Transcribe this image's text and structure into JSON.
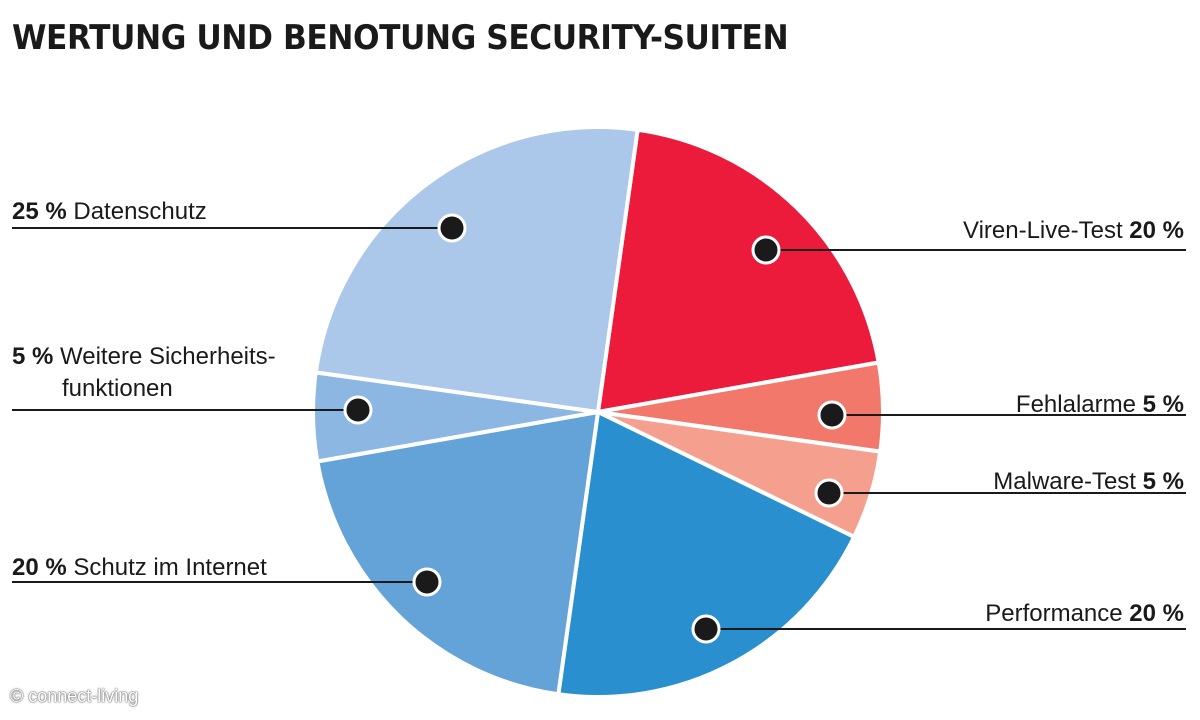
{
  "title": "WERTUNG UND BENOTUNG SECURITY-SUITEN",
  "copyright": "© connect-living",
  "chart_data": {
    "type": "pie",
    "title": "WERTUNG UND BENOTUNG SECURITY-SUITEN",
    "unit": "%",
    "slices": [
      {
        "label": "Viren-Live-Test",
        "value": 20,
        "value_label": "20 %",
        "color": "#ec1b3c",
        "side": "right"
      },
      {
        "label": "Fehlalarme",
        "value": 5,
        "value_label": "5 %",
        "color": "#f1786a",
        "side": "right"
      },
      {
        "label": "Malware-Test",
        "value": 5,
        "value_label": "5 %",
        "color": "#f5a08f",
        "side": "right"
      },
      {
        "label": "Performance",
        "value": 20,
        "value_label": "20 %",
        "color": "#2a8fcf",
        "side": "right"
      },
      {
        "label": "Schutz im Internet",
        "value": 20,
        "value_label": "20 %",
        "color": "#64a3d8",
        "side": "left"
      },
      {
        "label": [
          "Weitere Sicherheits-",
          "funktionen"
        ],
        "value": 5,
        "value_label": "5 %",
        "color": "#8cb7e3",
        "side": "left"
      },
      {
        "label": "Datenschutz",
        "value": 25,
        "value_label": "25 %",
        "color": "#abc8ea",
        "side": "left"
      }
    ]
  }
}
